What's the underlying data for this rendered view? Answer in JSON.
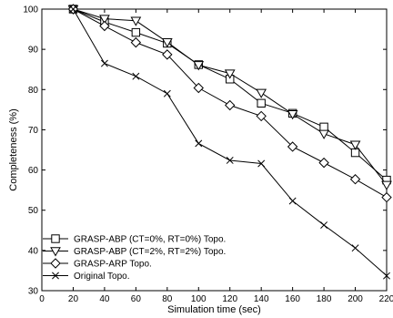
{
  "chart_data": {
    "type": "line",
    "xlabel": "Simulation time (sec)",
    "ylabel": "Completeness (%)",
    "xlim": [
      0,
      220
    ],
    "ylim": [
      30,
      100
    ],
    "xticks": [
      0,
      20,
      40,
      60,
      80,
      100,
      120,
      140,
      160,
      180,
      200,
      220
    ],
    "yticks": [
      30,
      40,
      50,
      60,
      70,
      80,
      90,
      100
    ],
    "grid": false,
    "legend_position": "bottom-left",
    "x": [
      20,
      40,
      60,
      80,
      100,
      120,
      140,
      160,
      180,
      200,
      220
    ],
    "series": [
      {
        "name": "GRASP-ABP (CT=0%, RT=0%) Topo.",
        "marker": "square",
        "values": [
          100,
          96.8,
          94.2,
          91.5,
          86.2,
          82.6,
          76.6,
          74.1,
          70.7,
          64.3,
          57.5
        ]
      },
      {
        "name": "GRASP-ABP (CT=2%, RT=2%) Topo.",
        "marker": "triangle-down",
        "values": [
          100,
          97.6,
          97.1,
          91.8,
          86.1,
          84.0,
          79.2,
          73.9,
          69.0,
          66.3,
          56.3
        ]
      },
      {
        "name": "GRASP-ARP Topo.",
        "marker": "diamond",
        "values": [
          100,
          95.8,
          91.7,
          88.7,
          80.4,
          76.1,
          73.4,
          65.8,
          61.8,
          57.7,
          53.2
        ]
      },
      {
        "name": "Original Topo.",
        "marker": "x",
        "values": [
          100,
          86.5,
          83.3,
          79.0,
          66.6,
          62.4,
          61.6,
          52.3,
          46.3,
          40.6,
          33.7
        ]
      }
    ]
  }
}
